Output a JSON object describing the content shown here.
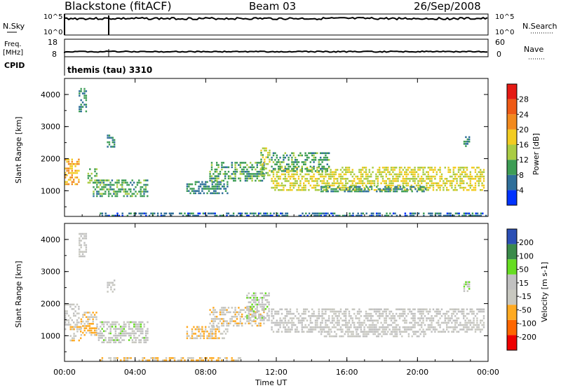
{
  "header": {
    "title": "Blackstone (fitACF)",
    "beam": "Beam 03",
    "date": "26/Sep/2008"
  },
  "top_panels": {
    "nsky_label": "N.Sky",
    "nsearch_label": "N.Search",
    "nsky_ticks": [
      "10^5",
      "10^0"
    ],
    "nsearch_ticks": [
      "10^5",
      "10^0"
    ],
    "freq_label": "Freq.",
    "freq_unit": "[MHz]",
    "freq_ticks": [
      "18",
      "8"
    ],
    "nave_label": "Nave",
    "nave_ticks": [
      "60",
      "0"
    ],
    "cpid_label": "CPID",
    "cpid_text": "themis (tau) 3310"
  },
  "colors": {
    "power": [
      "#0033ff",
      "#2f6f9a",
      "#3d9d55",
      "#aacc44",
      "#f2cc22",
      "#f28a1e",
      "#ee5a16",
      "#e51a14"
    ],
    "velocity": [
      "#ee0000",
      "#ff6600",
      "#ffaa22",
      "#c8c8c0",
      "#c0c0c0",
      "#66dd22",
      "#3a8a4a",
      "#2b4fb5"
    ]
  },
  "chart_data": [
    {
      "type": "heatmap",
      "panel": "power",
      "ylabel": "Slant Range [km]",
      "yticks": [
        "4000",
        "3000",
        "2000",
        "1000"
      ],
      "ylim": [
        200,
        4500
      ],
      "xlabel": "Time UT",
      "xticks": [
        "00:00",
        "04:00",
        "08:00",
        "12:00",
        "16:00",
        "20:00",
        "00:00"
      ],
      "xlim": [
        0,
        24
      ],
      "colorbar": {
        "label": "Power [dB]",
        "ticks": [
          "28",
          "24",
          "20",
          "16",
          "12",
          "8",
          "4"
        ],
        "range": [
          0,
          32
        ]
      },
      "echo_regions": [
        {
          "t0": 0.0,
          "t1": 0.8,
          "r0": 1200,
          "r1": 2000,
          "level": 20
        },
        {
          "t0": 0.8,
          "t1": 1.2,
          "r0": 3500,
          "r1": 4200,
          "level": 8
        },
        {
          "t0": 1.3,
          "t1": 1.8,
          "r0": 1250,
          "r1": 1700,
          "level": 12
        },
        {
          "t0": 1.6,
          "t1": 4.7,
          "r0": 850,
          "r1": 1350,
          "level": 10
        },
        {
          "t0": 2.4,
          "t1": 2.8,
          "r0": 2350,
          "r1": 2750,
          "level": 8
        },
        {
          "t0": 2.0,
          "t1": 23.9,
          "r0": 200,
          "r1": 320,
          "level": 6
        },
        {
          "t0": 6.9,
          "t1": 9.2,
          "r0": 950,
          "r1": 1300,
          "level": 8
        },
        {
          "t0": 8.2,
          "t1": 11.3,
          "r0": 1300,
          "r1": 1900,
          "level": 10
        },
        {
          "t0": 11.1,
          "t1": 11.6,
          "r0": 1500,
          "r1": 2350,
          "level": 14
        },
        {
          "t0": 11.7,
          "t1": 23.8,
          "r0": 1050,
          "r1": 1750,
          "level": 16
        },
        {
          "t0": 11.7,
          "t1": 15.0,
          "r0": 1600,
          "r1": 2200,
          "level": 10
        },
        {
          "t0": 14.5,
          "t1": 20.5,
          "r0": 950,
          "r1": 1150,
          "level": 8
        },
        {
          "t0": 22.6,
          "t1": 22.9,
          "r0": 2400,
          "r1": 2700,
          "level": 8
        }
      ]
    },
    {
      "type": "heatmap",
      "panel": "velocity",
      "ylabel": "Slant Range [km]",
      "yticks": [
        "4000",
        "3000",
        "2000",
        "1000"
      ],
      "ylim": [
        200,
        4500
      ],
      "xlabel": "Time UT",
      "xticks": [
        "00:00",
        "04:00",
        "08:00",
        "12:00",
        "16:00",
        "20:00",
        "00:00"
      ],
      "xlim": [
        0,
        24
      ],
      "colorbar": {
        "label": "Velocity [m s-1]",
        "ticks": [
          "200",
          "100",
          "50",
          "15",
          "-15",
          "-50",
          "-100",
          "-200"
        ],
        "range": [
          -250,
          250
        ]
      },
      "echo_regions": [
        {
          "t0": 0.0,
          "t1": 0.8,
          "r0": 1200,
          "r1": 2000,
          "level": 0
        },
        {
          "t0": 0.8,
          "t1": 1.2,
          "r0": 3500,
          "r1": 4200,
          "level": 0
        },
        {
          "t0": 0.3,
          "t1": 0.9,
          "r0": 850,
          "r1": 1300,
          "level": -80
        },
        {
          "t0": 0.9,
          "t1": 1.8,
          "r0": 1000,
          "r1": 1750,
          "level": -70
        },
        {
          "t0": 1.8,
          "t1": 4.7,
          "r0": 800,
          "r1": 1450,
          "level": 30
        },
        {
          "t0": 2.4,
          "t1": 2.8,
          "r0": 2350,
          "r1": 2750,
          "level": 0
        },
        {
          "t0": 2.0,
          "t1": 10.0,
          "r0": 200,
          "r1": 330,
          "level": -60
        },
        {
          "t0": 6.9,
          "t1": 9.2,
          "r0": 950,
          "r1": 1300,
          "level": -50
        },
        {
          "t0": 8.2,
          "t1": 11.3,
          "r0": 1300,
          "r1": 1900,
          "level": -40
        },
        {
          "t0": 10.3,
          "t1": 11.6,
          "r0": 1500,
          "r1": 2350,
          "level": 30
        },
        {
          "t0": 11.7,
          "t1": 23.8,
          "r0": 1100,
          "r1": 1850,
          "level": 0
        },
        {
          "t0": 14.5,
          "t1": 20.5,
          "r0": 950,
          "r1": 1150,
          "level": 0
        },
        {
          "t0": 22.6,
          "t1": 22.9,
          "r0": 2400,
          "r1": 2700,
          "level": 30
        }
      ]
    }
  ]
}
